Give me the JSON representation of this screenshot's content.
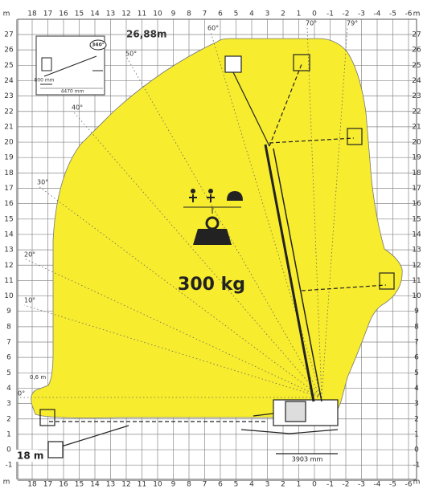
{
  "diagram": {
    "unit": "m",
    "x_labels": [
      "18",
      "17",
      "16",
      "15",
      "14",
      "13",
      "12",
      "11",
      "10",
      "9",
      "8",
      "7",
      "6",
      "5",
      "4",
      "3",
      "2",
      "1",
      "0",
      "-1",
      "-2",
      "-3",
      "-4",
      "-5",
      "-6"
    ],
    "y_labels": [
      "27",
      "26",
      "25",
      "24",
      "23",
      "22",
      "21",
      "20",
      "19",
      "18",
      "17",
      "16",
      "15",
      "14",
      "13",
      "12",
      "11",
      "10",
      "9",
      "8",
      "7",
      "6",
      "5",
      "4",
      "3",
      "2",
      "1",
      "0",
      "-1"
    ],
    "max_height": "26,88m",
    "max_reach": "18 m",
    "load": "300 kg",
    "angles": [
      "0°",
      "10°",
      "20°",
      "30°",
      "40°",
      "50°",
      "60°",
      "70°",
      "79°"
    ],
    "offset": "0,6 m",
    "base_width": "3903 mm",
    "inset": {
      "rotation": "340°",
      "width": "4470 mm",
      "height": "800 mm"
    }
  }
}
